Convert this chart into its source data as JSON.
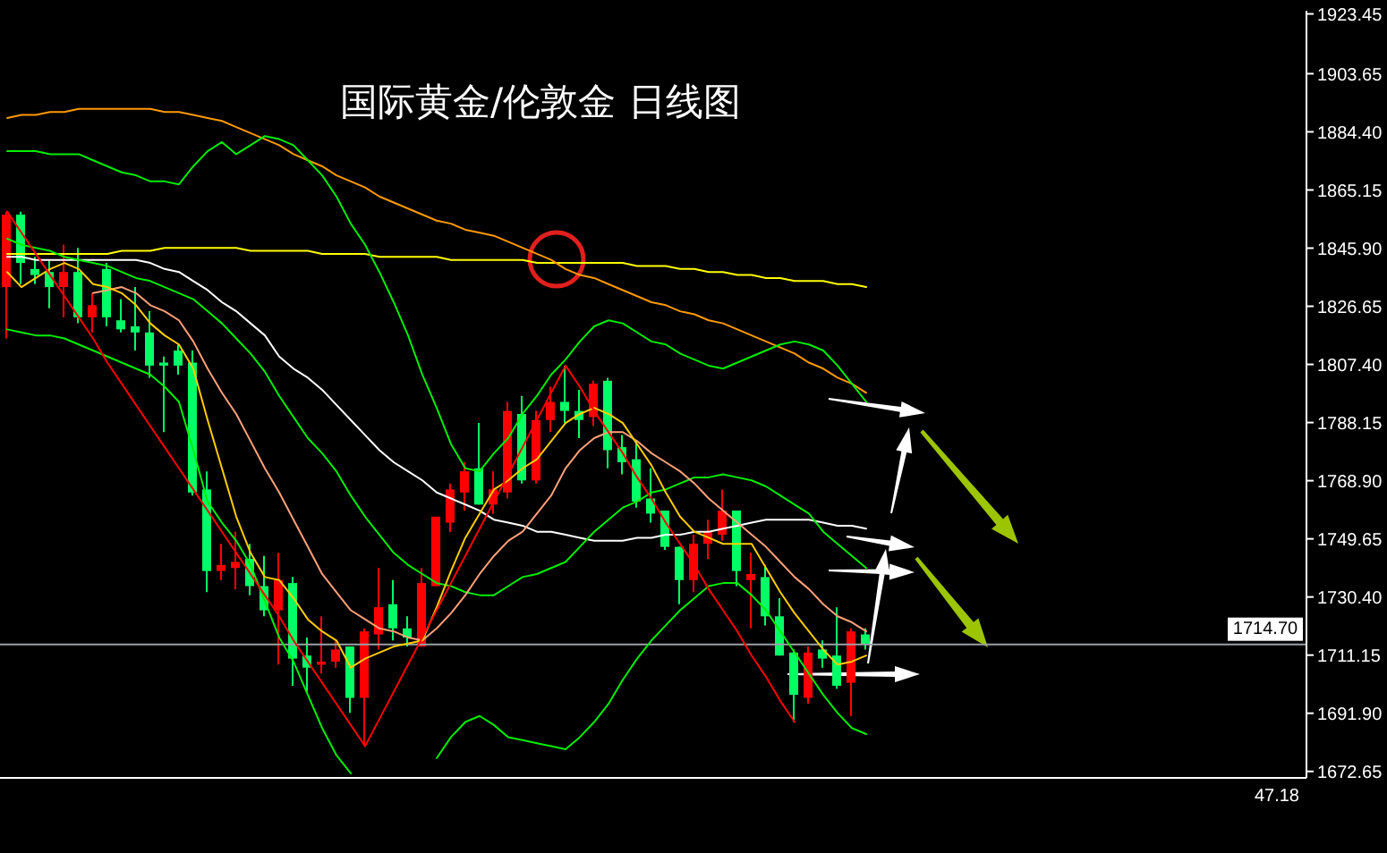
{
  "chart_data": {
    "type": "candlestick",
    "title": "国际黄金/伦敦金 日线图",
    "categories": [
      null,
      null,
      null,
      null,
      null,
      null,
      null,
      null,
      null,
      null,
      null,
      null,
      null,
      null,
      null,
      null,
      null,
      null,
      null,
      null,
      null,
      null,
      null,
      null,
      null,
      null,
      null,
      null,
      null,
      null,
      null,
      null,
      null,
      null,
      null,
      null,
      null,
      null,
      null,
      null,
      null,
      null,
      null,
      null,
      null,
      null,
      null,
      null,
      null,
      null,
      null,
      null,
      null,
      null,
      null,
      null,
      null,
      null,
      null,
      null,
      null
    ],
    "ohlc": [
      [
        1833,
        1858,
        1816,
        1857
      ],
      [
        1857,
        1858,
        1834,
        1841
      ],
      [
        1839,
        1843,
        1834,
        1837
      ],
      [
        1838,
        1842,
        1826,
        1833
      ],
      [
        1833,
        1847,
        1823,
        1838
      ],
      [
        1838,
        1846,
        1821,
        1823
      ],
      [
        1823,
        1831,
        1818,
        1827
      ],
      [
        1839,
        1841,
        1820,
        1823
      ],
      [
        1822,
        1829,
        1818,
        1819
      ],
      [
        1820,
        1833,
        1812,
        1818
      ],
      [
        1818,
        1825,
        1803,
        1807
      ],
      [
        1808,
        1810,
        1785,
        1807
      ],
      [
        1812,
        1814,
        1804,
        1807
      ],
      [
        1808,
        1812,
        1764,
        1765
      ],
      [
        1766,
        1772,
        1732,
        1739
      ],
      [
        1739,
        1748,
        1736,
        1741
      ],
      [
        1740,
        1752,
        1733,
        1742
      ],
      [
        1743,
        1748,
        1731,
        1734
      ],
      [
        1734,
        1744,
        1724,
        1726
      ],
      [
        1726,
        1745,
        1708,
        1736
      ],
      [
        1735,
        1737,
        1701,
        1710
      ],
      [
        1711,
        1717,
        1699,
        1707
      ],
      [
        1708,
        1724,
        1705,
        1709
      ],
      [
        1709,
        1716,
        1707,
        1713
      ],
      [
        1714,
        1714,
        1692,
        1697
      ],
      [
        1697,
        1720,
        1681,
        1719
      ],
      [
        1718,
        1740,
        1713,
        1727
      ],
      [
        1728,
        1736,
        1716,
        1720
      ],
      [
        1720,
        1724,
        1714,
        1717
      ],
      [
        1714,
        1740,
        1714,
        1735
      ],
      [
        1734,
        1757,
        1734,
        1757
      ],
      [
        1755,
        1768,
        1752,
        1766
      ],
      [
        1765,
        1775,
        1759,
        1772
      ],
      [
        1773,
        1788,
        1761,
        1761
      ],
      [
        1761,
        1772,
        1758,
        1766
      ],
      [
        1765,
        1795,
        1763,
        1792
      ],
      [
        1791,
        1797,
        1768,
        1769
      ],
      [
        1769,
        1792,
        1768,
        1789
      ],
      [
        1789,
        1800,
        1785,
        1795
      ],
      [
        1795,
        1807,
        1788,
        1792
      ],
      [
        1792,
        1799,
        1783,
        1789
      ],
      [
        1790,
        1802,
        1787,
        1801
      ],
      [
        1802,
        1803,
        1773,
        1779
      ],
      [
        1780,
        1784,
        1771,
        1775
      ],
      [
        1776,
        1782,
        1760,
        1762
      ],
      [
        1763,
        1773,
        1755,
        1758
      ],
      [
        1759,
        1759,
        1746,
        1747
      ],
      [
        1747,
        1747,
        1728,
        1736
      ],
      [
        1736,
        1751,
        1732,
        1748
      ],
      [
        1748,
        1756,
        1743,
        1752
      ],
      [
        1751,
        1766,
        1749,
        1759
      ],
      [
        1759,
        1759,
        1734,
        1739
      ],
      [
        1736,
        1745,
        1720,
        1738
      ],
      [
        1737,
        1741,
        1721,
        1724
      ],
      [
        1724,
        1730,
        1711,
        1711
      ],
      [
        1712,
        1713,
        1689,
        1698
      ],
      [
        1697,
        1714,
        1695,
        1712
      ],
      [
        1713,
        1716,
        1707,
        1710
      ],
      [
        1711,
        1727,
        1700,
        1701
      ],
      [
        1702,
        1720,
        1691,
        1719
      ],
      [
        1718,
        1720,
        1713,
        1714.7
      ]
    ],
    "colors": [
      "#ff0000",
      "#00ff66",
      "#00ff66",
      "#00ff66",
      "#ff0000",
      "#00ff66",
      "#ff0000",
      "#00ff66",
      "#00ff66",
      "#00ff66",
      "#00ff66",
      "#00ff66",
      "#00ff66",
      "#00ff66",
      "#00ff66",
      "#ff0000",
      "#ff0000",
      "#00ff66",
      "#00ff66",
      "#ff0000",
      "#00ff66",
      "#00ff66",
      "#ff0000",
      "#ff0000",
      "#00ff66",
      "#ff0000",
      "#ff0000",
      "#00ff66",
      "#00ff66",
      "#ff0000",
      "#ff0000",
      "#ff0000",
      "#ff0000",
      "#00ff66",
      "#ff0000",
      "#ff0000",
      "#00ff66",
      "#ff0000",
      "#ff0000",
      "#00ff66",
      "#00ff66",
      "#ff0000",
      "#00ff66",
      "#00ff66",
      "#00ff66",
      "#00ff66",
      "#00ff66",
      "#00ff66",
      "#ff0000",
      "#ff0000",
      "#ff0000",
      "#00ff66",
      "#ff0000",
      "#00ff66",
      "#00ff66",
      "#00ff66",
      "#ff0000",
      "#00ff66",
      "#00ff66",
      "#ff0000",
      "#00ff66"
    ],
    "series": [
      {
        "type": "line",
        "color": "#ffff00",
        "values": [
          1844,
          1844,
          1844,
          1844,
          1844,
          1844,
          1844,
          1844,
          1845,
          1845,
          1845,
          1846,
          1846,
          1846,
          1846,
          1846,
          1846,
          1845,
          1845,
          1845,
          1845,
          1845,
          1844,
          1844,
          1844,
          1844,
          1843,
          1843,
          1843,
          1843,
          1843,
          1842,
          1842,
          1842,
          1842,
          1842,
          1842,
          1841,
          1841,
          1841,
          1841,
          1841,
          1841,
          1841,
          1840,
          1840,
          1840,
          1839,
          1839,
          1838,
          1838,
          1837,
          1837,
          1836,
          1836,
          1835,
          1835,
          1835,
          1834,
          1834,
          1833
        ]
      },
      {
        "type": "line",
        "color": "#ff9900",
        "values": [
          1889,
          1890,
          1890,
          1891,
          1891,
          1892,
          1892,
          1892,
          1892,
          1892,
          1892,
          1891,
          1891,
          1890,
          1889,
          1888,
          1886,
          1884,
          1882,
          1880,
          1877,
          1875,
          1873,
          1870,
          1868,
          1866,
          1863,
          1861,
          1859,
          1857,
          1855,
          1854,
          1852,
          1851,
          1850,
          1848,
          1846,
          1844,
          1842,
          1839,
          1837,
          1836,
          1834,
          1832,
          1830,
          1828,
          1827,
          1825,
          1824,
          1822,
          1821,
          1819,
          1817,
          1815,
          1813,
          1811,
          1808,
          1806,
          1803,
          1801,
          1798
        ]
      },
      {
        "type": "line",
        "color": "#ffffff",
        "values": [
          1843,
          1843,
          1842,
          1842,
          1842,
          1842,
          1842,
          1842,
          1842,
          1842,
          1841,
          1839,
          1838,
          1835,
          1832,
          1828,
          1825,
          1821,
          1817,
          1810,
          1806,
          1803,
          1799,
          1794,
          1789,
          1784,
          1779,
          1775,
          1772,
          1769,
          1765,
          1763,
          1761,
          1759,
          1756,
          1755,
          1754,
          1752,
          1752,
          1751,
          1750,
          1749,
          1749,
          1749,
          1750,
          1750,
          1751,
          1751,
          1752,
          1752,
          1753,
          1754,
          1755,
          1756,
          1756,
          1756,
          1756,
          1755,
          1754,
          1754,
          1753
        ]
      },
      {
        "type": "line",
        "color": "#00ee00",
        "values": [
          1878,
          1878,
          1878,
          1877,
          1877,
          1877,
          1875,
          1873,
          1871,
          1870,
          1868,
          1868,
          1867,
          1873,
          1878,
          1881,
          1877,
          1880,
          1883,
          1882,
          1880,
          1875,
          1870,
          1863,
          1854,
          1847,
          1838,
          1828,
          1817,
          1804,
          1793,
          1781,
          1773,
          1772,
          1778,
          1783,
          1791,
          1797,
          1804,
          1809,
          1815,
          1820,
          1822,
          1821,
          1818,
          1815,
          1814,
          1811,
          1809,
          1807,
          1806,
          1808,
          1810,
          1812,
          1814,
          1815,
          1814,
          1812,
          1807,
          1801,
          1795
        ]
      },
      {
        "type": "line",
        "color": "#00ee00",
        "values": [
          1849,
          1847,
          1846,
          1845,
          1843,
          1842,
          1841,
          1840,
          1838,
          1836,
          1835,
          1833,
          1831,
          1829,
          1825,
          1821,
          1816,
          1811,
          1805,
          1797,
          1790,
          1783,
          1778,
          1772,
          1764,
          1757,
          1751,
          1745,
          1741,
          1738,
          1735,
          1734,
          1732,
          1731,
          1731,
          1734,
          1737,
          1738,
          1740,
          1742,
          1747,
          1752,
          1756,
          1760,
          1762,
          1765,
          1766,
          1768,
          1770,
          1770,
          1771,
          1770,
          1769,
          1767,
          1764,
          1761,
          1758,
          1752,
          1748,
          1744,
          1740
        ]
      },
      {
        "type": "line",
        "color": "#00ee00",
        "values": [
          1819,
          1818,
          1817,
          1817,
          1816,
          1814,
          1812,
          1810,
          1808,
          1806,
          1804,
          1800,
          1795,
          1779,
          1762,
          1755,
          1749,
          1741,
          1729,
          1717,
          1709,
          1698,
          1687,
          1678,
          1672,
          null,
          null,
          null,
          null,
          null,
          1677,
          1684,
          1689,
          1691,
          1688,
          1684,
          1683,
          1682,
          1681,
          1680,
          1684,
          1689,
          1695,
          1703,
          1710,
          1716,
          1721,
          1726,
          1730,
          1734,
          1735,
          1735,
          1731,
          1726,
          1719,
          1712,
          1705,
          1698,
          1692,
          1687,
          1685
        ]
      },
      {
        "type": "line",
        "color": "#ffa07a",
        "values": [
          null,
          null,
          null,
          null,
          null,
          null,
          1831,
          1832,
          1833,
          1831,
          1827,
          1825,
          1822,
          1815,
          1806,
          1798,
          1791,
          1782,
          1773,
          1765,
          1756,
          1747,
          1738,
          1732,
          1726,
          1723,
          1720,
          1719,
          1717,
          1716,
          1720,
          1725,
          1731,
          1738,
          1744,
          1749,
          1752,
          1758,
          1764,
          1773,
          1779,
          1783,
          1785,
          1785,
          1782,
          1778,
          1775,
          1772,
          1768,
          1763,
          1759,
          1755,
          1751,
          1747,
          1742,
          1737,
          1733,
          1728,
          1724,
          1722,
          1719
        ]
      },
      {
        "type": "line",
        "color": "#ffcc00",
        "values": [
          1838,
          1833,
          1836,
          1839,
          1841,
          1839,
          1834,
          1833,
          1831,
          1827,
          1821,
          1817,
          1814,
          1806,
          1789,
          1773,
          1757,
          1745,
          1737,
          1736,
          1730,
          1723,
          1719,
          1716,
          1707,
          1710,
          1712,
          1714,
          1715,
          1716,
          1727,
          1739,
          1750,
          1758,
          1766,
          1769,
          1773,
          1776,
          1782,
          1788,
          1791,
          1793,
          1791,
          1788,
          1781,
          1774,
          1765,
          1757,
          1752,
          1750,
          1748,
          1748,
          1748,
          1740,
          1732,
          1725,
          1719,
          1713,
          1708,
          1709,
          1711
        ]
      },
      {
        "type": "line",
        "color": "#ff0000",
        "values": [
          1858,
          1851,
          1844,
          1837,
          1830,
          1823,
          1816,
          1808,
          1801,
          1794,
          1787,
          1780,
          1773,
          1766,
          1759,
          1752,
          1745,
          1738,
          1731,
          1724,
          1716,
          1709,
          1702,
          1695,
          1688,
          1681,
          1690,
          1699,
          1708,
          1717,
          1726,
          1735,
          1744,
          1753,
          1762,
          1771,
          1780,
          1789,
          1798,
          1807,
          1800,
          1792,
          1785,
          1778,
          1770,
          1763,
          1755,
          1748,
          1741,
          1733,
          1726,
          1719,
          1711,
          1704,
          1696,
          1689,
          null,
          null,
          null,
          null,
          null
        ]
      }
    ],
    "ylim": [
      1670.5,
      1924.5
    ],
    "yticks": [
      1672.65,
      {
        "value": 1691.9,
        "label": "1691.90"
      },
      1711.15,
      {
        "value": 1730.4,
        "label": "1730.40"
      },
      1749.65,
      {
        "value": 1768.9,
        "label": "1768.90"
      },
      1788.15,
      {
        "value": 1807.4,
        "label": "1807.40"
      },
      1826.65,
      {
        "value": 1845.9,
        "label": "1845.90"
      },
      1865.15,
      {
        "value": 1884.4,
        "label": "1884.40"
      },
      1903.65,
      1923.45
    ],
    "ref_lines": [
      {
        "axis": "y",
        "value": 1714.7,
        "label": "1714.70",
        "color": "#9aa0a6"
      }
    ],
    "annotations": [
      "47.18"
    ],
    "tick_labels": "y"
  }
}
